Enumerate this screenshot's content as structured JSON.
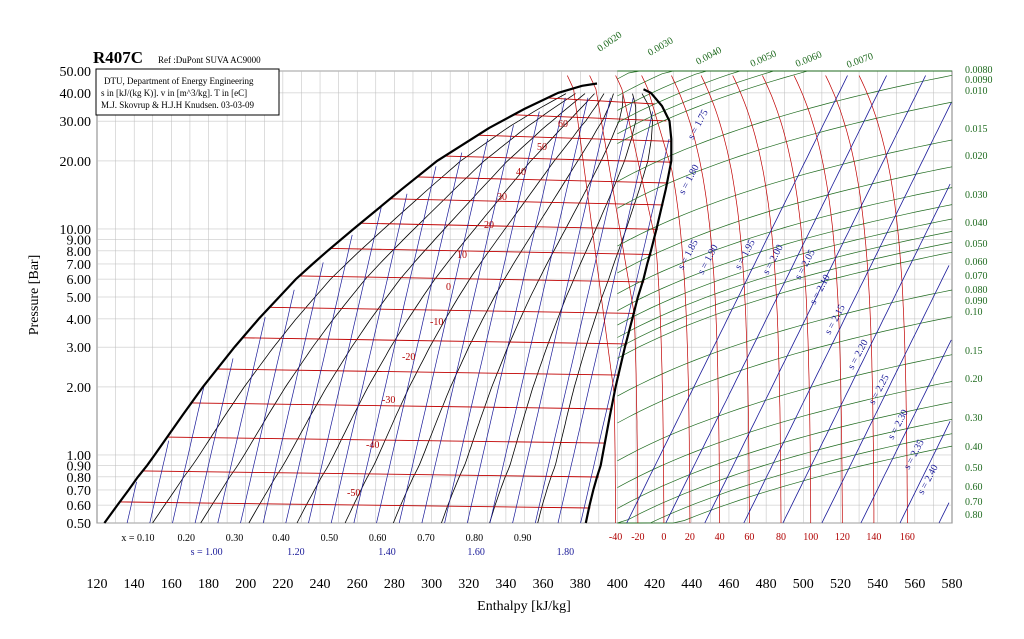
{
  "chart_data": {
    "type": "line",
    "title": "R407C",
    "subtitle": "Ref :DuPont SUVA AC9000",
    "info_box": [
      "DTU, Department of Energy Engineering",
      "s in [kJ/(kg K)].  v in [m^3/kg].  T in [eC]",
      "M.J. Skovrup & H.J.H Knudsen. 03-03-09"
    ],
    "xlabel": "Enthalpy [kJ/kg]",
    "ylabel": "Pressure [Bar]",
    "xlim": [
      120,
      580
    ],
    "ylim": [
      0.5,
      50
    ],
    "yscale": "log",
    "grid": true,
    "x_ticks": [
      "120",
      "140",
      "160",
      "180",
      "200",
      "220",
      "240",
      "260",
      "280",
      "300",
      "320",
      "340",
      "360",
      "380",
      "400",
      "420",
      "440",
      "460",
      "480",
      "500",
      "520",
      "540",
      "560",
      "580"
    ],
    "y_ticks": [
      {
        "v": 50,
        "label": "50.00"
      },
      {
        "v": 40,
        "label": "40.00"
      },
      {
        "v": 30,
        "label": "30.00"
      },
      {
        "v": 20,
        "label": "20.00"
      },
      {
        "v": 10,
        "label": "10.00"
      },
      {
        "v": 9,
        "label": "9.00"
      },
      {
        "v": 8,
        "label": "8.00"
      },
      {
        "v": 7,
        "label": "7.00"
      },
      {
        "v": 6,
        "label": "6.00"
      },
      {
        "v": 5,
        "label": "5.00"
      },
      {
        "v": 4,
        "label": "4.00"
      },
      {
        "v": 3,
        "label": "3.00"
      },
      {
        "v": 2,
        "label": "2.00"
      },
      {
        "v": 1,
        "label": "1.00"
      },
      {
        "v": 0.9,
        "label": "0.90"
      },
      {
        "v": 0.8,
        "label": "0.80"
      },
      {
        "v": 0.7,
        "label": "0.70"
      },
      {
        "v": 0.6,
        "label": "0.60"
      },
      {
        "v": 0.5,
        "label": "0.50"
      }
    ],
    "saturation_liquid": [
      [
        124,
        0.5
      ],
      [
        131,
        0.6
      ],
      [
        137,
        0.7
      ],
      [
        142,
        0.8
      ],
      [
        147,
        0.9
      ],
      [
        151,
        1.0
      ],
      [
        166,
        1.5
      ],
      [
        177,
        2.0
      ],
      [
        194,
        3.0
      ],
      [
        207,
        4.0
      ],
      [
        218,
        5.0
      ],
      [
        227,
        6.0
      ],
      [
        236,
        7.0
      ],
      [
        244,
        8.0
      ],
      [
        258,
        10.0
      ],
      [
        284,
        15.0
      ],
      [
        303,
        20.0
      ],
      [
        331,
        28.0
      ],
      [
        350,
        34.0
      ],
      [
        368,
        40.0
      ],
      [
        381,
        43.0
      ],
      [
        389,
        44.0
      ]
    ],
    "saturation_vapor": [
      [
        383,
        0.5
      ],
      [
        385,
        0.6
      ],
      [
        387,
        0.7
      ],
      [
        389,
        0.8
      ],
      [
        391,
        0.9
      ],
      [
        392,
        1.0
      ],
      [
        396,
        1.5
      ],
      [
        399,
        2.0
      ],
      [
        404,
        3.0
      ],
      [
        408,
        4.0
      ],
      [
        411,
        5.0
      ],
      [
        414,
        6.0
      ],
      [
        416,
        7.0
      ],
      [
        418,
        8.0
      ],
      [
        421,
        10.0
      ],
      [
        426,
        15.0
      ],
      [
        429,
        20.0
      ],
      [
        429,
        25.0
      ],
      [
        428,
        30.0
      ],
      [
        424,
        35.0
      ],
      [
        418,
        40.0
      ],
      [
        414,
        41.5
      ]
    ],
    "isotherms_liquid_region": [
      {
        "label": "60",
        "T": 60
      },
      {
        "label": "50",
        "T": 50
      },
      {
        "label": "40",
        "T": 40
      },
      {
        "label": "30",
        "T": 30
      },
      {
        "label": "20",
        "T": 20
      },
      {
        "label": "10",
        "T": 10
      },
      {
        "label": "0",
        "T": 0
      },
      {
        "label": "-10",
        "T": -10
      },
      {
        "label": "-20",
        "T": -20
      },
      {
        "label": "-30",
        "T": -30
      },
      {
        "label": "-40",
        "T": -40
      },
      {
        "label": "-50",
        "T": -50
      }
    ],
    "temperature_labels_bottom": [
      "-40",
      "-20",
      "0",
      "20",
      "40",
      "60",
      "80",
      "100",
      "120",
      "140",
      "160"
    ],
    "temperature_bottom_h": [
      399,
      411,
      425,
      439,
      455,
      471,
      488,
      504,
      521,
      538,
      556
    ],
    "quality_labels": [
      {
        "label": "x = 0.10",
        "h": 142
      },
      {
        "label": "0.20",
        "h": 168
      },
      {
        "label": "0.30",
        "h": 194
      },
      {
        "label": "0.40",
        "h": 219
      },
      {
        "label": "0.50",
        "h": 245
      },
      {
        "label": "0.60",
        "h": 271
      },
      {
        "label": "0.70",
        "h": 297
      },
      {
        "label": "0.80",
        "h": 323
      },
      {
        "label": "0.90",
        "h": 349
      }
    ],
    "entropy_labels_bottom": [
      {
        "label": "s = 1.00",
        "h": 179
      },
      {
        "label": "1.20",
        "h": 227
      },
      {
        "label": "1.40",
        "h": 276
      },
      {
        "label": "1.60",
        "h": 324
      },
      {
        "label": "1.80",
        "h": 372
      }
    ],
    "entropy_labels_vapor": [
      "s = 1.75",
      "s = 1.80",
      "s = 1.85",
      "s = 1.90",
      "s = 1.95",
      "s = 2.00",
      "s = 2.05",
      "s = 2.10",
      "s = 2.15",
      "s = 2.20",
      "s = 2.25",
      "s = 2.30",
      "s = 2.35",
      "s = 2.40"
    ],
    "entropy_vapor_values": [
      1.75,
      1.8,
      1.85,
      1.9,
      1.95,
      2.0,
      2.05,
      2.1,
      2.15,
      2.2,
      2.25,
      2.3,
      2.35,
      2.4
    ],
    "specific_volume_labels": [
      "0.0020",
      "0.0030",
      "0.0040",
      "0.0050",
      "0.0060",
      "0.0070",
      "0.0080",
      "0.0090",
      "0.010",
      "0.015",
      "0.020",
      "0.030",
      "0.040",
      "0.050",
      "0.060",
      "0.070",
      "0.080",
      "0.090",
      "0.10",
      "0.15",
      "0.20",
      "0.30",
      "0.40",
      "0.50",
      "0.60",
      "0.70",
      "0.80"
    ],
    "specific_volume_values": [
      0.002,
      0.003,
      0.004,
      0.005,
      0.006,
      0.007,
      0.008,
      0.009,
      0.01,
      0.015,
      0.02,
      0.03,
      0.04,
      0.05,
      0.06,
      0.07,
      0.08,
      0.09,
      0.1,
      0.15,
      0.2,
      0.3,
      0.4,
      0.5,
      0.6,
      0.7,
      0.8
    ],
    "colors": {
      "grid": "#bbbbbb",
      "saturation": "#000000",
      "isotherm": "#c00000",
      "isentrope": "#1a1a99",
      "isochore": "#1f6b1f",
      "quality": "#000000"
    }
  }
}
